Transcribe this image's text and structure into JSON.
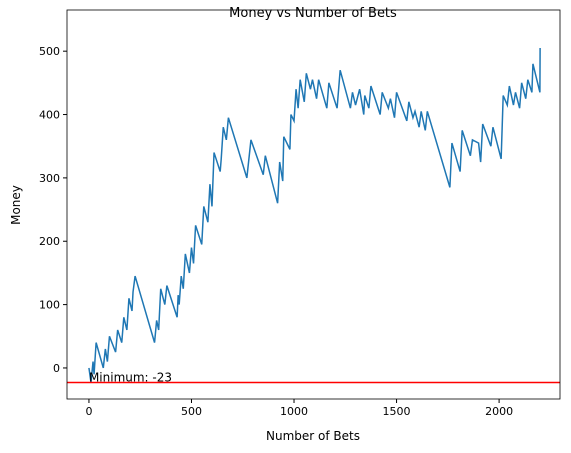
{
  "chart_data": {
    "type": "line",
    "title": "Money vs Number of Bets",
    "xlabel": "Number of Bets",
    "ylabel": "Money",
    "x": [
      0,
      10,
      20,
      25,
      35,
      70,
      80,
      90,
      100,
      130,
      140,
      160,
      170,
      185,
      195,
      210,
      215,
      225,
      320,
      330,
      340,
      350,
      370,
      380,
      430,
      435,
      440,
      450,
      460,
      470,
      490,
      500,
      510,
      520,
      550,
      560,
      580,
      590,
      600,
      610,
      640,
      645,
      655,
      670,
      680,
      770,
      790,
      850,
      860,
      920,
      930,
      945,
      950,
      980,
      985,
      1000,
      1010,
      1020,
      1030,
      1050,
      1060,
      1080,
      1090,
      1110,
      1120,
      1160,
      1170,
      1210,
      1225,
      1275,
      1285,
      1300,
      1320,
      1340,
      1345,
      1365,
      1375,
      1420,
      1430,
      1460,
      1470,
      1490,
      1500,
      1550,
      1560,
      1580,
      1590,
      1610,
      1620,
      1640,
      1650,
      1760,
      1770,
      1810,
      1820,
      1860,
      1870,
      1900,
      1910,
      1920,
      1960,
      1970,
      2010,
      2020,
      2040,
      2050,
      2070,
      2080,
      2100,
      2110,
      2130,
      2140,
      2160,
      2165,
      2199,
      2200
    ],
    "series": [
      {
        "name": "Money",
        "color": "#1f77b4",
        "values": [
          0,
          -23,
          10,
          -10,
          40,
          0,
          30,
          10,
          50,
          25,
          60,
          40,
          80,
          60,
          110,
          90,
          120,
          145,
          40,
          75,
          60,
          125,
          100,
          130,
          80,
          115,
          100,
          145,
          125,
          180,
          150,
          190,
          165,
          225,
          195,
          255,
          230,
          290,
          255,
          340,
          310,
          330,
          380,
          360,
          395,
          300,
          360,
          305,
          335,
          260,
          325,
          295,
          365,
          345,
          400,
          390,
          440,
          410,
          455,
          420,
          465,
          440,
          455,
          425,
          455,
          410,
          450,
          410,
          470,
          410,
          435,
          415,
          440,
          400,
          430,
          410,
          445,
          400,
          435,
          410,
          425,
          395,
          435,
          390,
          420,
          395,
          405,
          380,
          405,
          375,
          405,
          285,
          355,
          310,
          375,
          335,
          360,
          355,
          325,
          385,
          350,
          380,
          330,
          430,
          415,
          445,
          415,
          435,
          410,
          450,
          425,
          455,
          435,
          480,
          435,
          505
        ]
      }
    ],
    "xlim": [
      -107,
      2297
    ],
    "ylim": [
      -49,
      565
    ],
    "xticks": [
      0,
      500,
      1000,
      1500,
      2000
    ],
    "yticks": [
      0,
      100,
      200,
      300,
      400,
      500
    ],
    "hline": {
      "value": -23,
      "color": "red"
    },
    "annotation": {
      "text": "Minimum: -23",
      "x": 0,
      "y": -23
    }
  }
}
